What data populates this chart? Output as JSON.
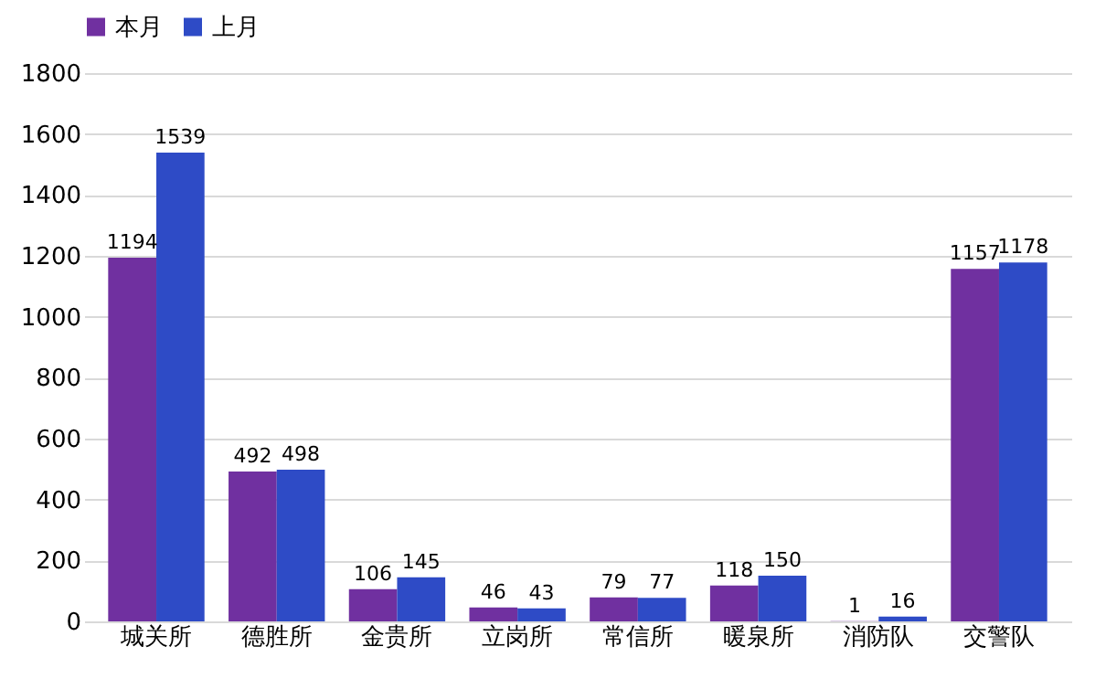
{
  "chart_data": {
    "type": "bar",
    "categories": [
      "城关所",
      "德胜所",
      "金贵所",
      "立岗所",
      "常信所",
      "暖泉所",
      "消防队",
      "交警队"
    ],
    "series": [
      {
        "name": "本月",
        "color": "#7030a0",
        "values": [
          1194,
          492,
          106,
          46,
          79,
          118,
          1,
          1157
        ]
      },
      {
        "name": "上月",
        "color": "#2e4bc6",
        "values": [
          1539,
          498,
          145,
          43,
          77,
          150,
          16,
          1178
        ]
      }
    ],
    "ylim": [
      0,
      1800
    ],
    "yticks": [
      0,
      200,
      400,
      600,
      800,
      1000,
      1200,
      1400,
      1600,
      1800
    ],
    "grid": "y",
    "legend": "top",
    "data_labels": true
  }
}
